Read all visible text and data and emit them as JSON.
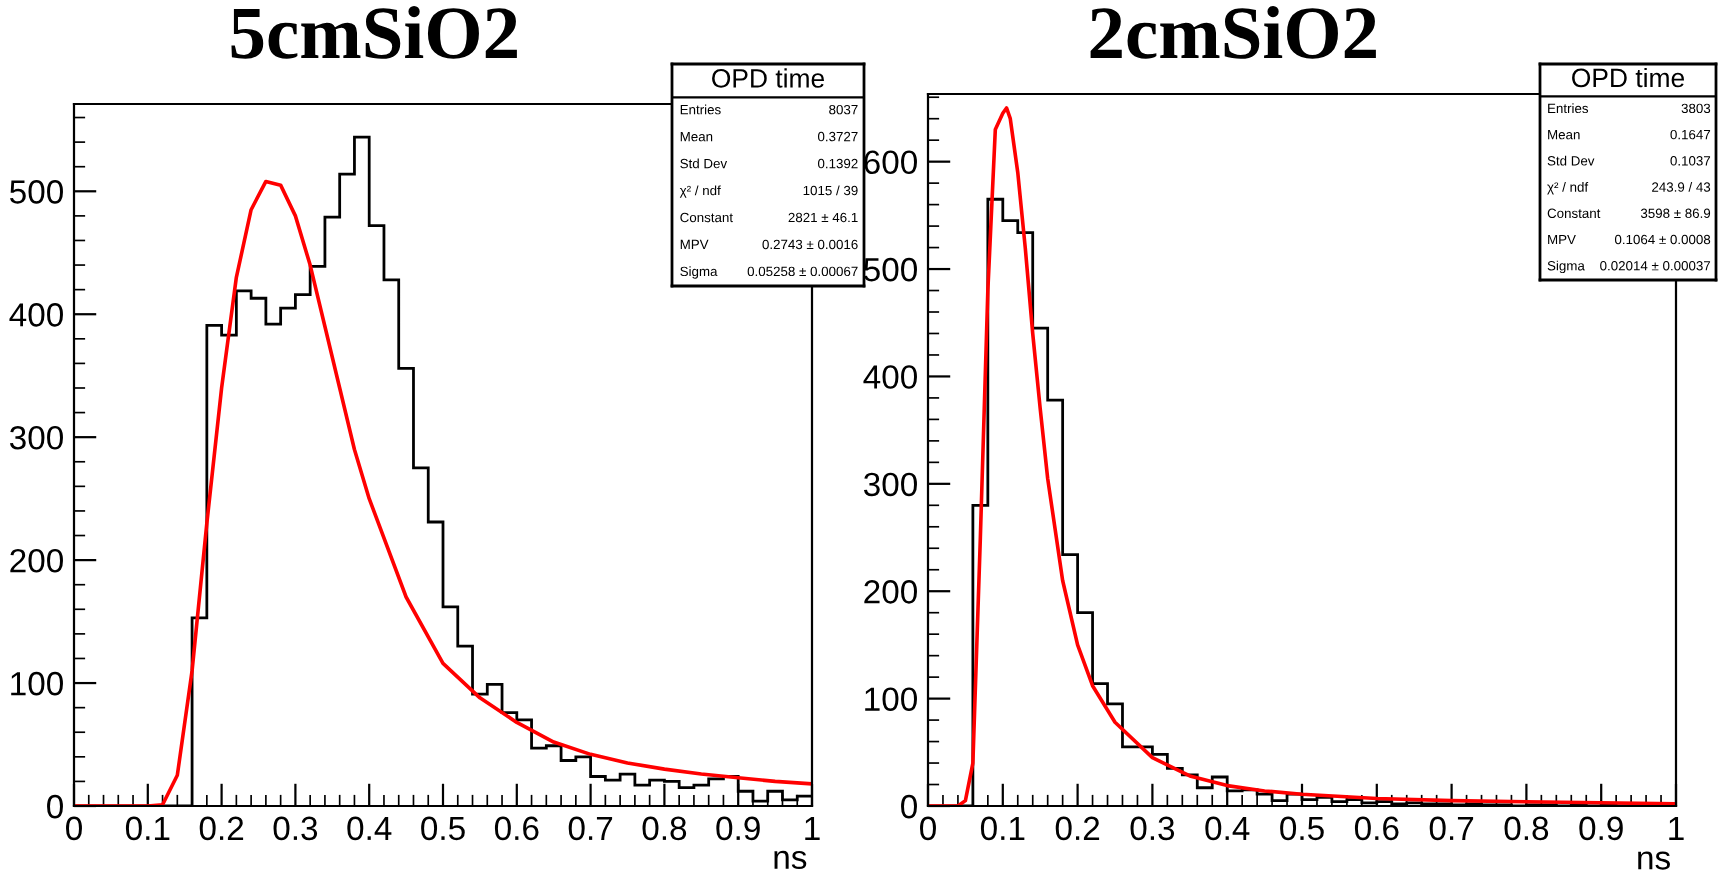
{
  "chart_data": [
    {
      "type": "histogram",
      "title": "5cmSiO2",
      "xlabel": "ns",
      "xlim": [
        0,
        1
      ],
      "ylim": [
        0,
        571
      ],
      "xticks": [
        0,
        0.1,
        0.2,
        0.3,
        0.4,
        0.5,
        0.6,
        0.7,
        0.8,
        0.9,
        1
      ],
      "yticks": [
        0,
        100,
        200,
        300,
        400,
        500
      ],
      "annotations": [
        "OPD time",
        "Entries",
        "8037",
        "Mean",
        "0.3727",
        "Std Dev",
        "0.1392",
        "χ² / ndf",
        "1015 / 39",
        "Constant",
        "2821 ± 46.1",
        "MPV",
        "0.2743 ± 0.0016",
        "Sigma",
        "0.05258 ± 0.00067"
      ],
      "series": [
        {
          "color": "#000000",
          "bins": [
            0,
            0.02,
            0.04,
            0.06,
            0.08,
            0.1,
            0.12,
            0.14,
            0.16,
            0.18,
            0.2,
            0.22,
            0.24,
            0.26,
            0.28,
            0.3,
            0.32,
            0.34,
            0.36,
            0.38,
            0.4,
            0.42,
            0.44,
            0.46,
            0.48,
            0.5,
            0.52,
            0.54,
            0.56,
            0.58,
            0.6,
            0.62,
            0.64,
            0.66,
            0.68,
            0.7,
            0.72,
            0.74,
            0.76,
            0.78,
            0.8,
            0.82,
            0.84,
            0.86,
            0.88,
            0.9,
            0.92,
            0.94,
            0.96,
            0.98,
            1
          ],
          "values": [
            0,
            0,
            0,
            0,
            0,
            0,
            0,
            0,
            153,
            391,
            383,
            419,
            413,
            392,
            405,
            416,
            439,
            479,
            514,
            544,
            472,
            428,
            356,
            275,
            231,
            162,
            130,
            91,
            99,
            76,
            70,
            47,
            49,
            37,
            40,
            24,
            21,
            26,
            17,
            21,
            20,
            15,
            17,
            22,
            24,
            12,
            4,
            12,
            5,
            8
          ]
        },
        {
          "type": "line",
          "color": "#ff0000",
          "x": [
            0,
            0.1,
            0.12,
            0.14,
            0.16,
            0.18,
            0.2,
            0.22,
            0.24,
            0.26,
            0.28,
            0.3,
            0.32,
            0.34,
            0.36,
            0.38,
            0.4,
            0.45,
            0.5,
            0.55,
            0.6,
            0.65,
            0.7,
            0.75,
            0.8,
            0.85,
            0.9,
            0.95,
            1
          ],
          "values": [
            0,
            0,
            1,
            25,
            110,
            230,
            340,
            430,
            485,
            508,
            505,
            480,
            440,
            390,
            340,
            290,
            250,
            170,
            116,
            88,
            68,
            52,
            42,
            35,
            30,
            26,
            23,
            20,
            18
          ]
        }
      ]
    },
    {
      "type": "histogram",
      "title": "2cmSiO2",
      "xlabel": "ns",
      "xlim": [
        0,
        1
      ],
      "ylim": [
        0,
        663
      ],
      "xticks": [
        0,
        0.1,
        0.2,
        0.3,
        0.4,
        0.5,
        0.6,
        0.7,
        0.8,
        0.9,
        1
      ],
      "yticks": [
        0,
        100,
        200,
        300,
        400,
        500,
        600
      ],
      "annotations": [
        "OPD time",
        "Entries",
        "3803",
        "Mean",
        "0.1647",
        "Std Dev",
        "0.1037",
        "χ² / ndf",
        "243.9 / 43",
        "Constant",
        "3598 ± 86.9",
        "MPV",
        "0.1064 ± 0.0008",
        "Sigma",
        "0.02014 ± 0.00037"
      ],
      "series": [
        {
          "color": "#000000",
          "bins": [
            0,
            0.02,
            0.04,
            0.06,
            0.08,
            0.1,
            0.12,
            0.14,
            0.16,
            0.18,
            0.2,
            0.22,
            0.24,
            0.26,
            0.28,
            0.3,
            0.32,
            0.34,
            0.36,
            0.38,
            0.4,
            0.42,
            0.44,
            0.46,
            0.48,
            0.5,
            0.52,
            0.54,
            0.56,
            0.58,
            0.6,
            0.62,
            0.64,
            0.66,
            0.68,
            0.7,
            0.72,
            0.74,
            0.76,
            0.78,
            0.8,
            0.82,
            0.84,
            0.86,
            0.88,
            0.9,
            0.92,
            0.94,
            0.96,
            0.98,
            1
          ],
          "values": [
            0,
            0,
            0,
            280,
            565,
            545,
            534,
            445,
            378,
            234,
            180,
            114,
            95,
            55,
            55,
            48,
            35,
            29,
            17,
            27,
            14,
            15,
            11,
            5,
            11,
            6,
            8,
            4,
            6,
            3,
            4,
            2,
            3,
            2,
            2,
            1,
            2,
            1,
            1,
            0,
            1,
            1,
            0,
            1,
            0,
            1,
            0,
            0,
            0,
            0
          ]
        },
        {
          "type": "line",
          "color": "#ff0000",
          "x": [
            0,
            0.04,
            0.05,
            0.06,
            0.07,
            0.08,
            0.09,
            0.1,
            0.105,
            0.11,
            0.12,
            0.13,
            0.14,
            0.15,
            0.16,
            0.18,
            0.2,
            0.22,
            0.25,
            0.3,
            0.35,
            0.4,
            0.45,
            0.5,
            0.6,
            0.7,
            0.8,
            0.9,
            1
          ],
          "values": [
            0,
            0,
            5,
            40,
            250,
            480,
            630,
            645,
            650,
            640,
            590,
            520,
            440,
            370,
            305,
            210,
            150,
            112,
            78,
            45,
            28,
            19,
            14,
            11,
            7,
            5,
            4,
            3,
            2
          ]
        }
      ]
    }
  ]
}
